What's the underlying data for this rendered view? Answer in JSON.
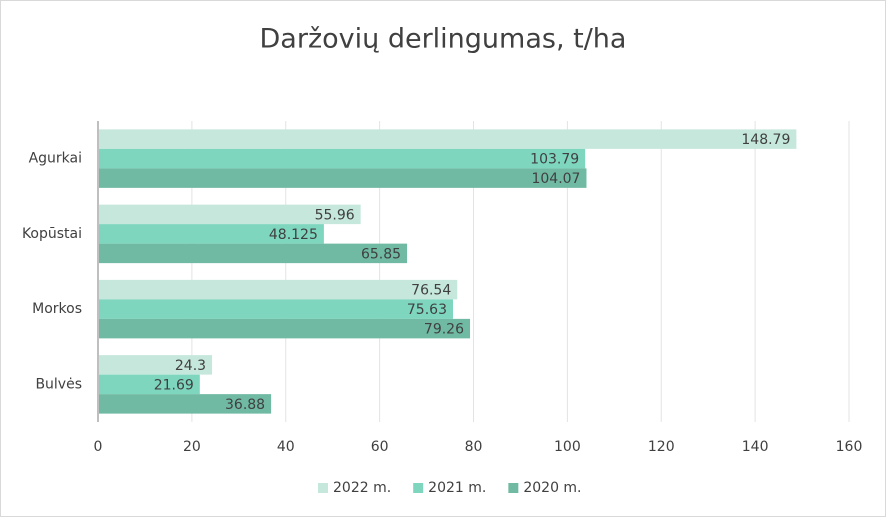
{
  "chart_data": {
    "type": "hbar",
    "title": "Daržovių derlingumas, t/ha",
    "categories": [
      "Agurkai",
      "Kopūstai",
      "Morkos",
      "Bulvės"
    ],
    "series": [
      {
        "name": "2022 m.",
        "color": "#c6e8dc",
        "values": [
          148.79,
          55.96,
          76.54,
          24.3
        ]
      },
      {
        "name": "2021 m.",
        "color": "#7ed6bf",
        "values": [
          103.79,
          48.125,
          75.63,
          21.69
        ]
      },
      {
        "name": "2020 m.",
        "color": "#70baa3",
        "values": [
          104.07,
          65.85,
          79.26,
          36.88
        ]
      }
    ],
    "xlim": [
      0,
      160
    ],
    "xticks": [
      0,
      20,
      40,
      60,
      80,
      100,
      120,
      140,
      160
    ],
    "grid": true,
    "legend": "bottom"
  }
}
